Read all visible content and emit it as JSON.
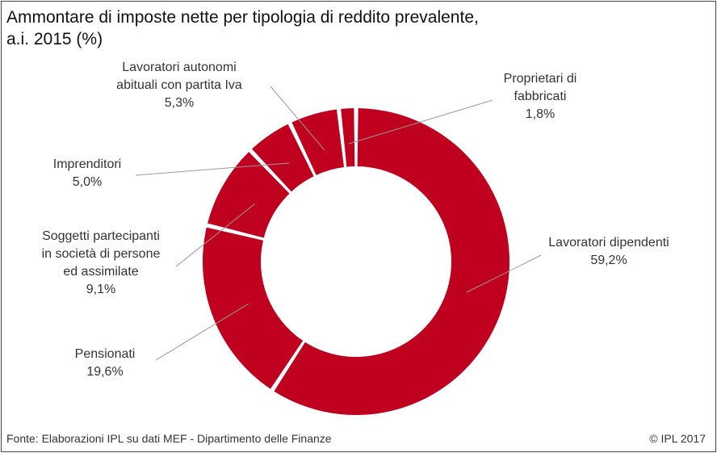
{
  "header": {
    "title_line1": "Ammontare di imposte nette per tipologia di reddito prevalente,",
    "title_line2": "a.i. 2015 (%)"
  },
  "footer": {
    "source": "Fonte: Elaborazioni IPL su dati MEF - Dipartimento delle Finanze",
    "copyright": "© IPL 2017"
  },
  "colors": {
    "slice": "#c0001f",
    "leader": "#9a9a9a",
    "text": "#333333"
  },
  "chart_data": {
    "type": "pie",
    "variant": "donut",
    "title": "Ammontare di imposte nette per tipologia di reddito prevalente, a.i. 2015 (%)",
    "start": "12 o'clock, clockwise",
    "slices": [
      {
        "lines": [
          "Lavoratori dipendenti"
        ],
        "value": 59.2,
        "value_label": "59,2%"
      },
      {
        "lines": [
          "Pensionati"
        ],
        "value": 19.6,
        "value_label": "19,6%"
      },
      {
        "lines": [
          "Soggetti partecipanti",
          "in società di persone",
          "ed assimilate"
        ],
        "value": 9.1,
        "value_label": "9,1%"
      },
      {
        "lines": [
          "Imprenditori"
        ],
        "value": 5.0,
        "value_label": "5,0%"
      },
      {
        "lines": [
          "Lavoratori autonomi",
          "abituali con partita Iva"
        ],
        "value": 5.3,
        "value_label": "5,3%"
      },
      {
        "lines": [
          "Proprietari di",
          "fabbricati"
        ],
        "value": 1.8,
        "value_label": "1,8%"
      }
    ]
  }
}
